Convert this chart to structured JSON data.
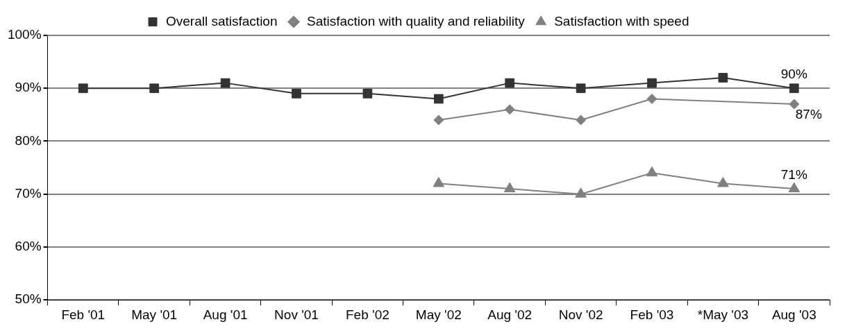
{
  "chart_data": {
    "type": "line",
    "categories": [
      "Feb '01",
      "May '01",
      "Aug '01",
      "Nov '01",
      "Feb '02",
      "May '02",
      "Aug '02",
      "Nov '02",
      "Feb '03",
      "*May '03",
      "Aug '03"
    ],
    "series": [
      {
        "name": "Overall satisfaction",
        "color": "#333333",
        "marker": "square",
        "values": [
          90,
          90,
          91,
          89,
          89,
          88,
          91,
          90,
          91,
          92,
          90
        ],
        "value_labels": [
          null,
          null,
          null,
          null,
          null,
          null,
          null,
          null,
          null,
          null,
          "90%"
        ]
      },
      {
        "name": "Satisfaction with quality and reliability",
        "color": "#808080",
        "marker": "diamond",
        "values": [
          null,
          null,
          null,
          null,
          null,
          84,
          86,
          84,
          88,
          null,
          87
        ],
        "value_labels": [
          null,
          null,
          null,
          null,
          null,
          null,
          null,
          null,
          null,
          null,
          "87%"
        ]
      },
      {
        "name": "Satisfaction with speed",
        "color": "#808080",
        "marker": "triangle",
        "values": [
          null,
          null,
          null,
          null,
          null,
          72,
          71,
          70,
          74,
          72,
          71
        ],
        "value_labels": [
          null,
          null,
          null,
          null,
          null,
          null,
          null,
          null,
          null,
          null,
          "71%"
        ]
      }
    ],
    "ylim": [
      50,
      100
    ],
    "yticks": [
      {
        "value": 50,
        "label": "50%"
      },
      {
        "value": 60,
        "label": "60%"
      },
      {
        "value": 70,
        "label": "70%"
      },
      {
        "value": 80,
        "label": "80%"
      },
      {
        "value": 90,
        "label": "90%"
      },
      {
        "value": 100,
        "label": "100%"
      }
    ],
    "grid": "y",
    "legend": "top"
  }
}
